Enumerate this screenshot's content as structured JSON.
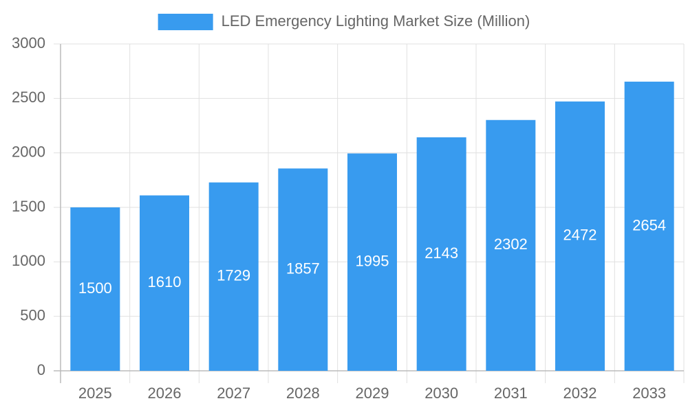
{
  "chart_data": {
    "type": "bar",
    "legend": "top",
    "series": [
      {
        "name": "LED Emergency Lighting Market Size (Million)",
        "color": "#389bef",
        "values": [
          1500,
          1610,
          1729,
          1857,
          1995,
          2143,
          2302,
          2472,
          2654
        ]
      }
    ],
    "categories": [
      "2025",
      "2026",
      "2027",
      "2028",
      "2029",
      "2030",
      "2031",
      "2032",
      "2033"
    ],
    "ylim": [
      0,
      3000
    ],
    "yticks": [
      0,
      500,
      1000,
      1500,
      2000,
      2500,
      3000
    ],
    "grid": true
  }
}
